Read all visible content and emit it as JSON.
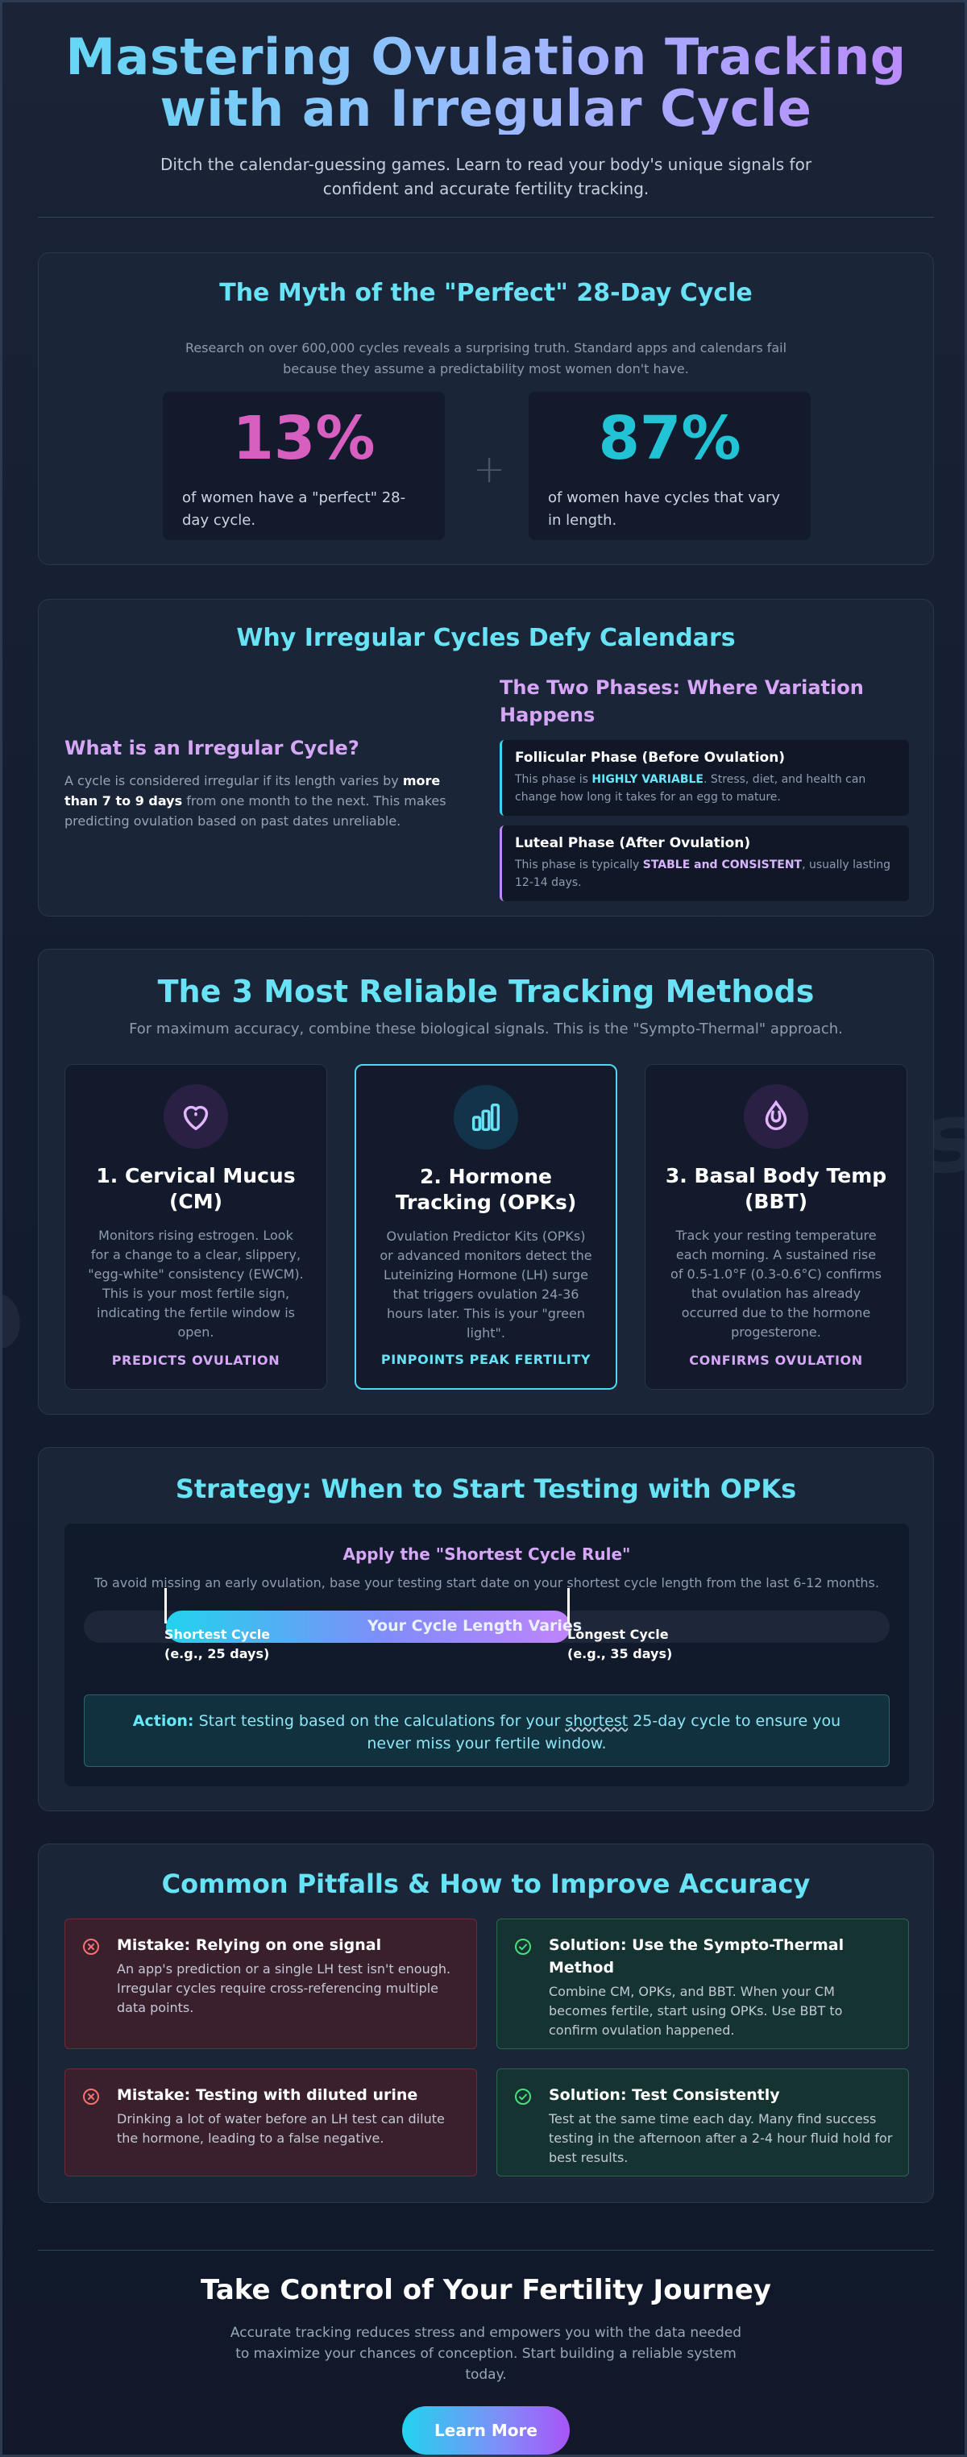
{
  "header": {
    "title_line1": "Mastering Ovulation Tracking",
    "title_line2": "with an Irregular Cycle",
    "subtitle": "Ditch the calendar-guessing games. Learn to read your body's unique signals for confident and accurate fertility tracking."
  },
  "myth": {
    "title": "The Myth of the \"Perfect\" 28-Day Cycle",
    "description": "Research on over 600,000 cycles reveals a surprising truth. Standard apps and calendars fail because they assume a predictability most women don't have.",
    "plus": "+",
    "stats": [
      {
        "value": "13%",
        "label": "of women have a \"perfect\" 28-day cycle.",
        "color": "#d65fc0"
      },
      {
        "value": "87%",
        "label": "of women have cycles that vary in length.",
        "color": "#22c3d4"
      }
    ]
  },
  "irregular": {
    "title": "Why Irregular Cycles Defy Calendars",
    "what_title": "What is an Irregular Cycle?",
    "what_text_before": "A cycle is considered irregular if its length varies by ",
    "what_text_bold": "more than 7 to 9 days",
    "what_text_after": " from one month to the next. This makes predicting ovulation based on past dates unreliable.",
    "phases_title": "The Two Phases: Where Variation Happens",
    "phases": [
      {
        "title": "Follicular Phase (Before Ovulation)",
        "before": "This phase is ",
        "highlight": "HIGHLY VARIABLE",
        "after": ". Stress, diet, and health can change how long it takes for an egg to mature."
      },
      {
        "title": "Luteal Phase (After Ovulation)",
        "before": "This phase is typically ",
        "highlight": "STABLE and CONSISTENT",
        "after": ", usually lasting 12-14 days."
      }
    ]
  },
  "methods": {
    "title": "The 3 Most Reliable Tracking Methods",
    "description": "For maximum accuracy, combine these biological signals. This is the \"Sympto-Thermal\" approach.",
    "cards": [
      {
        "icon": "heart-icon",
        "title": "1. Cervical Mucus (CM)",
        "text": "Monitors rising estrogen. Look for a change to a clear, slippery, \"egg-white\" consistency (EWCM). This is your most fertile sign, indicating the fertile window is open.",
        "tag": "PREDICTS OVULATION",
        "accent": "#d7a7f7"
      },
      {
        "icon": "bar-chart-icon",
        "title": "2. Hormone Tracking (OPKs)",
        "text": "Ovulation Predictor Kits (OPKs) or advanced monitors detect the Luteinizing Hormone (LH) surge that triggers ovulation 24-36 hours later. This is your \"green light\".",
        "tag": "PINPOINTS PEAK FERTILITY",
        "accent": "#67e3f5"
      },
      {
        "icon": "thermometer-drop-icon",
        "title": "3. Basal Body Temp (BBT)",
        "text": "Track your resting temperature each morning. A sustained rise of 0.5-1.0°F (0.3-0.6°C) confirms that ovulation has already occurred due to the hormone progesterone.",
        "tag": "CONFIRMS OVULATION",
        "accent": "#d7a7f7"
      }
    ]
  },
  "strategy": {
    "title": "Strategy: When to Start Testing with OPKs",
    "rule_title": "Apply the \"Shortest Cycle Rule\"",
    "rule_text": "To avoid missing an early ovulation, base your testing start date on your shortest cycle length from the last 6-12 months.",
    "bar_label": "Your Cycle Length Varies",
    "shortest_line1": "Shortest Cycle",
    "shortest_line2": "(e.g., 25 days)",
    "longest_line1": "Longest Cycle",
    "longest_line2": "(e.g., 35 days)",
    "action_label": "Action:",
    "action_before": " Start testing based on the calculations for your ",
    "action_emph": "shortest",
    "action_after": " 25-day cycle to ensure you never miss your fertile window."
  },
  "pitfalls": {
    "title": "Common Pitfalls & How to Improve Accuracy",
    "items": [
      {
        "kind": "mistake",
        "title": "Mistake: Relying on one signal",
        "text": "An app's prediction or a single LH test isn't enough. Irregular cycles require cross-referencing multiple data points."
      },
      {
        "kind": "solution",
        "title": "Solution: Use the Sympto-Thermal Method",
        "text": "Combine CM, OPKs, and BBT. When your CM becomes fertile, start using OPKs. Use BBT to confirm ovulation happened."
      },
      {
        "kind": "mistake",
        "title": "Mistake: Testing with diluted urine",
        "text": "Drinking a lot of water before an LH test can dilute the hormone, leading to a false negative."
      },
      {
        "kind": "solution",
        "title": "Solution: Test Consistently",
        "text": "Test at the same time each day. Many find success testing in the afternoon after a 2-4 hour fluid hold for best results."
      }
    ]
  },
  "footer": {
    "title": "Take Control of Your Fertility Journey",
    "text": "Accurate tracking reduces stress and empowers you with the data needed to maximize your chances of conception. Start building a reliable system today.",
    "cta": "Learn More"
  }
}
